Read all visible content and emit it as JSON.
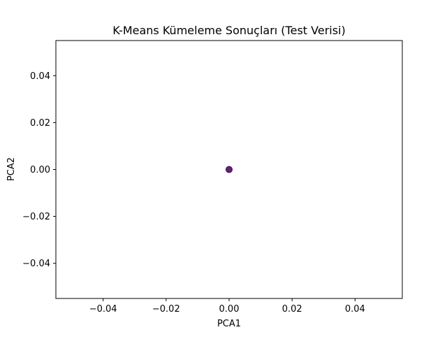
{
  "chart_data": {
    "type": "scatter",
    "title": "K-Means Kümeleme Sonuçları (Test Verisi)",
    "xlabel": "PCA1",
    "ylabel": "PCA2",
    "xlim": [
      -0.055,
      0.055
    ],
    "ylim": [
      -0.055,
      0.055
    ],
    "xticks": [
      -0.04,
      -0.02,
      0.0,
      0.02,
      0.04
    ],
    "yticks": [
      -0.04,
      -0.02,
      0.0,
      0.02,
      0.04
    ],
    "xtick_labels": [
      "−0.04",
      "−0.02",
      "0.00",
      "0.02",
      "0.04"
    ],
    "ytick_labels": [
      "−0.04",
      "−0.02",
      "0.00",
      "0.02",
      "0.04"
    ],
    "grid": false,
    "legend": "none",
    "point_color": "#440154",
    "series": [
      {
        "x": [
          0.0
        ],
        "y": [
          0.0
        ]
      }
    ]
  }
}
